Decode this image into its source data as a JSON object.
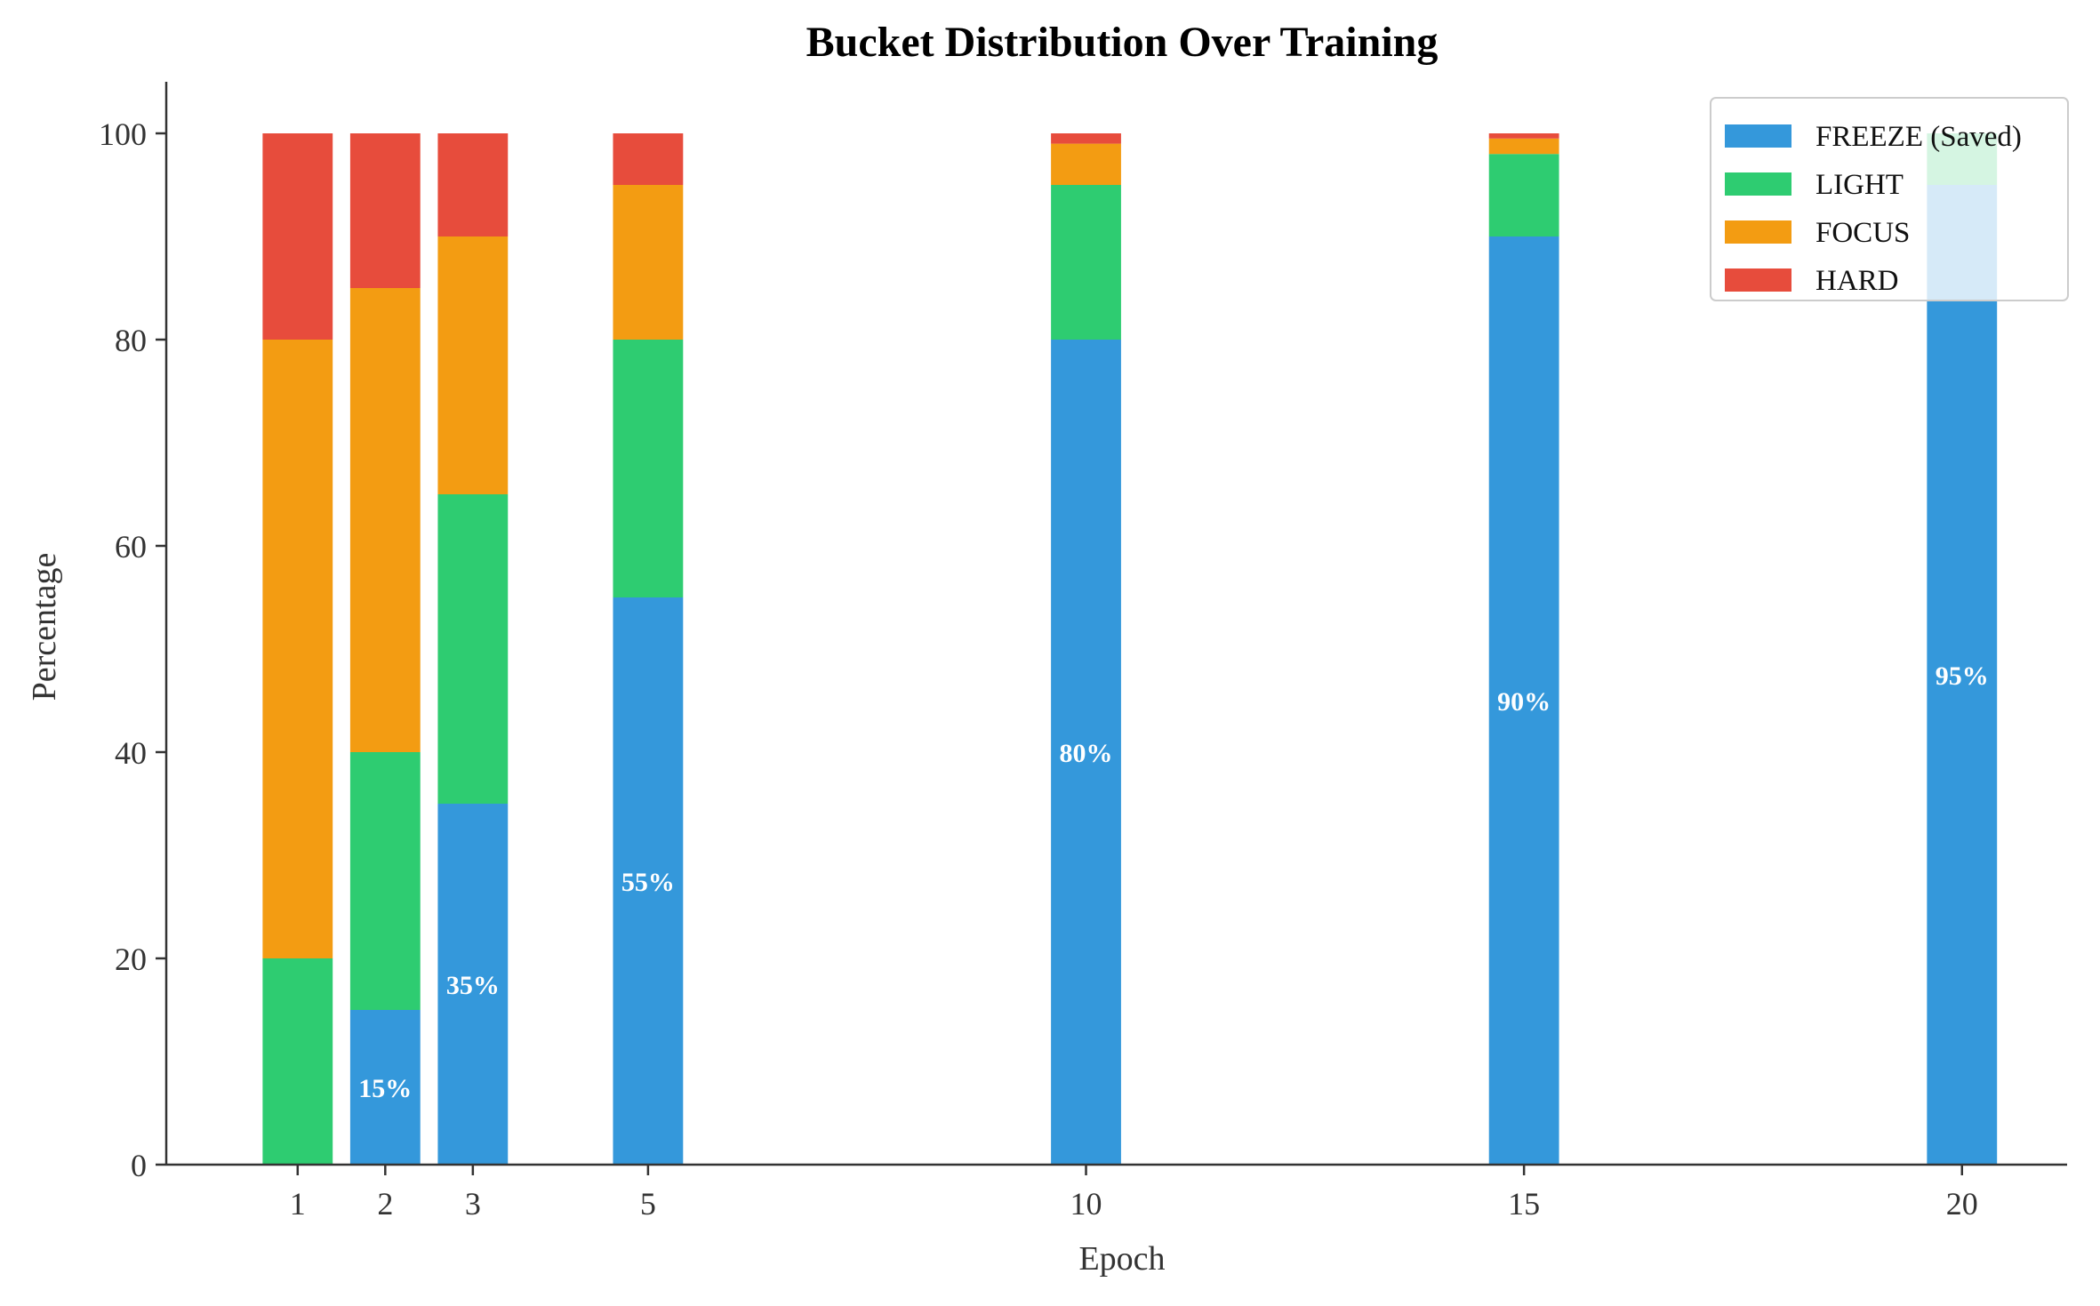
{
  "chart_data": {
    "type": "bar",
    "stacked": true,
    "title": "Bucket Distribution Over Training",
    "xlabel": "Epoch",
    "ylabel": "Percentage",
    "x": [
      1,
      2,
      3,
      5,
      10,
      15,
      20
    ],
    "x_tick_labels": [
      "1",
      "2",
      "3",
      "5",
      "10",
      "15",
      "20"
    ],
    "xlim": [
      -0.5,
      21.2
    ],
    "ylim": [
      0,
      105
    ],
    "y_ticks": [
      0,
      20,
      40,
      60,
      80,
      100
    ],
    "y_tick_labels": [
      "0",
      "20",
      "40",
      "60",
      "80",
      "100"
    ],
    "grid": false,
    "legend_position": "top-right",
    "series": [
      {
        "name": "FREEZE (Saved)",
        "color": "#3498db",
        "values": [
          0,
          15,
          35,
          55,
          80,
          90,
          95
        ]
      },
      {
        "name": "LIGHT",
        "color": "#2ecc71",
        "values": [
          20,
          25,
          30,
          25,
          15,
          8,
          5
        ]
      },
      {
        "name": "FOCUS",
        "color": "#f39c12",
        "values": [
          60,
          45,
          25,
          15,
          4,
          1.5,
          0
        ]
      },
      {
        "name": "HARD",
        "color": "#e74c3c",
        "values": [
          20,
          15,
          10,
          5,
          1,
          0.5,
          0
        ]
      }
    ],
    "data_labels": [
      "",
      "15%",
      "35%",
      "55%",
      "80%",
      "90%",
      "95%"
    ]
  }
}
